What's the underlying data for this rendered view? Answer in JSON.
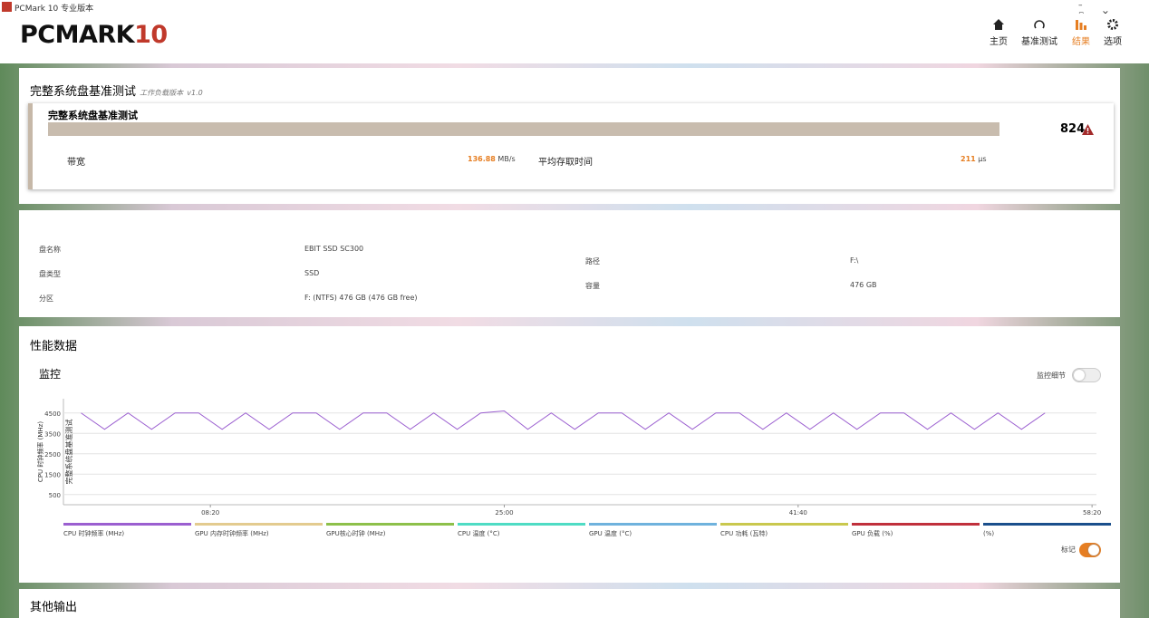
{
  "window": {
    "title": "PCMark 10 专业版本"
  },
  "header": {
    "logo": "PCMARK",
    "logo_num": "10",
    "nav": [
      "主页",
      "基准测试",
      "结果",
      "选项"
    ]
  },
  "benchmark": {
    "title": "完整系统盘基准测试",
    "workload_label": "工作负载版本",
    "version": "v1.0",
    "test_name": "完整系统盘基准测试",
    "score": 824,
    "bandwidth_label": "带宽",
    "bandwidth": 136.88,
    "bandwidth_unit": "MB/s",
    "access_label": "平均存取时间",
    "access": 211,
    "access_unit": "μs"
  },
  "drive": {
    "left": [
      [
        "盘名称",
        "EBIT SSD SC300"
      ],
      [
        "盘类型",
        "SSD"
      ],
      [
        "分区",
        "F: (NTFS) 476 GB (476 GB free)"
      ]
    ],
    "right": [
      [
        "路径",
        "F:\\"
      ],
      [
        "容量",
        "476 GB"
      ]
    ]
  },
  "performance": {
    "title": "性能数据",
    "monitor_title": "监控",
    "details_toggle": "监控细节",
    "marker_toggle": "标记",
    "chart_data": {
      "type": "line",
      "y_label": "CPU 时钟频率 (MHz)",
      "marker_label": "完整系统盘基准测试",
      "x": [
        60,
        140,
        220,
        300,
        380,
        460,
        540,
        620,
        700,
        780,
        860,
        940,
        1020,
        1100,
        1180,
        1260,
        1340,
        1420,
        1500,
        1580,
        1660,
        1740,
        1820,
        1900,
        1980,
        2060,
        2140,
        2220,
        2300,
        2380,
        2460,
        2540,
        2620,
        2700,
        2780,
        2860,
        2940,
        3020,
        3100,
        3180,
        3260,
        3340
      ],
      "series": [
        {
          "name": "CPU 时钟频率 (MHz)",
          "color": "#9b5fd0",
          "values": [
            4500,
            3700,
            4500,
            3700,
            4500,
            4500,
            3700,
            4500,
            3700,
            4500,
            4500,
            3700,
            4500,
            4500,
            3700,
            4500,
            3700,
            4500,
            4600,
            3700,
            4500,
            3700,
            4500,
            4500,
            3700,
            4500,
            3700,
            4500,
            4500,
            3700,
            4500,
            3700,
            4500,
            3700,
            4500,
            4500,
            3700,
            4500,
            3700,
            4500,
            3700,
            4500
          ]
        }
      ],
      "xlim": [
        0,
        3515
      ],
      "xticks": [
        {
          "value": 500,
          "label": "08:20"
        },
        {
          "value": 1500,
          "label": "25:00"
        },
        {
          "value": 2500,
          "label": "41:40"
        },
        {
          "value": 3500,
          "label": "58:20"
        }
      ],
      "ylim": [
        0,
        5200
      ],
      "yticks": [
        500,
        1500,
        2500,
        3500,
        4500
      ],
      "grid": true,
      "legend": [
        {
          "name": "CPU 时钟频率 (MHz)",
          "color": "#9b5fd0"
        },
        {
          "name": "GPU 内存时钟频率 (MHz)",
          "color": "#e3cb8f"
        },
        {
          "name": "GPU核心时钟 (MHz)",
          "color": "#8dc04a"
        },
        {
          "name": "CPU 温度 (°C)",
          "color": "#4fdcc4"
        },
        {
          "name": "GPU 温度 (°C)",
          "color": "#6fb2dd"
        },
        {
          "name": "CPU 功耗 (瓦特)",
          "color": "#c9c84e"
        },
        {
          "name": "GPU 负载 (%)",
          "color": "#c0303c"
        },
        {
          "name": "(%)",
          "color": "#1b4f8c"
        }
      ]
    }
  },
  "other": {
    "title": "其他输出"
  }
}
